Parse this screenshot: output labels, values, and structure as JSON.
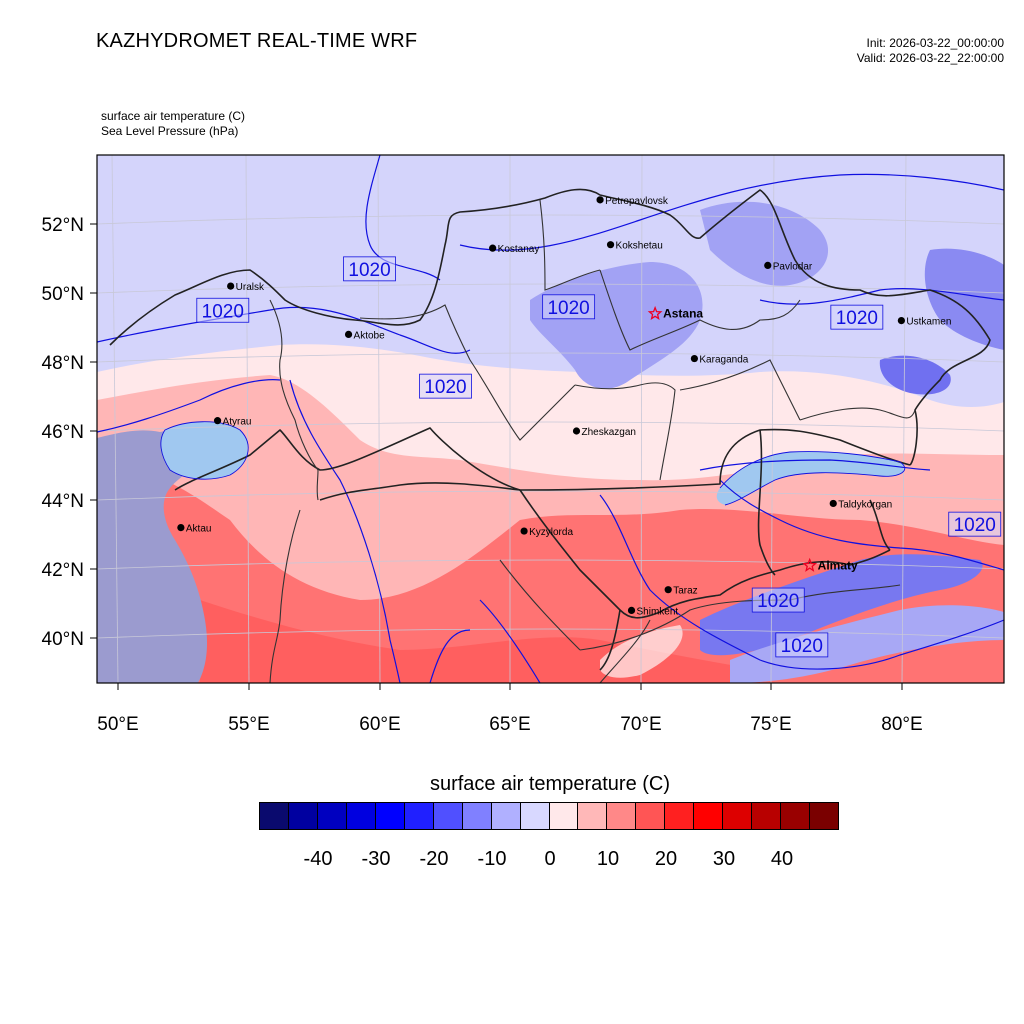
{
  "header": {
    "title": "KAZHYDROMET REAL-TIME WRF",
    "init": "Init: 2026-03-22_00:00:00",
    "valid": "Valid: 2026-03-22_22:00:00"
  },
  "variables": {
    "var1": "surface air temperature   (C)",
    "var2": "Sea Level Pressure   (hPa)"
  },
  "axes": {
    "lat_labels": [
      "52°N",
      "50°N",
      "48°N",
      "46°N",
      "44°N",
      "42°N",
      "40°N"
    ],
    "lon_labels": [
      "50°E",
      "55°E",
      "60°E",
      "65°E",
      "70°E",
      "75°E",
      "80°E"
    ]
  },
  "cities": [
    {
      "name": "Petropavlovsk",
      "lon": 68.4,
      "lat": 52.7,
      "marker": "dot",
      "bold": false
    },
    {
      "name": "Kostanay",
      "lon": 64.3,
      "lat": 51.3,
      "marker": "dot",
      "bold": false
    },
    {
      "name": "Kokshetau",
      "lon": 68.8,
      "lat": 51.4,
      "marker": "dot",
      "bold": false
    },
    {
      "name": "Pavlodar",
      "lon": 74.8,
      "lat": 50.8,
      "marker": "dot",
      "bold": false
    },
    {
      "name": "Uralsk",
      "lon": 54.3,
      "lat": 50.2,
      "marker": "dot",
      "bold": false
    },
    {
      "name": "Astana",
      "lon": 70.5,
      "lat": 49.4,
      "marker": "star",
      "bold": true
    },
    {
      "name": "Aktobe",
      "lon": 58.8,
      "lat": 48.8,
      "marker": "dot",
      "bold": false
    },
    {
      "name": "Ustkamen",
      "lon": 79.9,
      "lat": 49.2,
      "marker": "dot",
      "bold": false
    },
    {
      "name": "Karaganda",
      "lon": 72.0,
      "lat": 48.1,
      "marker": "dot",
      "bold": false
    },
    {
      "name": "Atyrau",
      "lon": 53.8,
      "lat": 46.3,
      "marker": "dot",
      "bold": false
    },
    {
      "name": "Zheskazgan",
      "lon": 67.5,
      "lat": 46.0,
      "marker": "dot",
      "bold": false
    },
    {
      "name": "Taldykorgan",
      "lon": 77.3,
      "lat": 43.9,
      "marker": "dot",
      "bold": false
    },
    {
      "name": "Aktau",
      "lon": 52.4,
      "lat": 43.2,
      "marker": "dot",
      "bold": false
    },
    {
      "name": "Kyzylorda",
      "lon": 65.5,
      "lat": 43.1,
      "marker": "dot",
      "bold": false
    },
    {
      "name": "Almaty",
      "lon": 76.4,
      "lat": 42.1,
      "marker": "star",
      "bold": true
    },
    {
      "name": "Taraz",
      "lon": 71.0,
      "lat": 41.4,
      "marker": "dot",
      "bold": false
    },
    {
      "name": "Shimkent",
      "lon": 69.6,
      "lat": 40.8,
      "marker": "dot",
      "bold": false
    }
  ],
  "pressure_labels": [
    {
      "text": "1020",
      "lon": 59.6,
      "lat": 50.7
    },
    {
      "text": "1020",
      "lon": 54.0,
      "lat": 49.5
    },
    {
      "text": "1020",
      "lon": 67.2,
      "lat": 49.6
    },
    {
      "text": "1020",
      "lon": 62.5,
      "lat": 47.3
    },
    {
      "text": "1020",
      "lon": 78.2,
      "lat": 49.3
    },
    {
      "text": "1020",
      "lon": 82.7,
      "lat": 43.3
    },
    {
      "text": "1020",
      "lon": 75.2,
      "lat": 41.1
    },
    {
      "text": "1020",
      "lon": 76.1,
      "lat": 39.8
    }
  ],
  "colorbar": {
    "title": "surface air temperature  (C)",
    "tick_labels": [
      "-40",
      "-30",
      "-20",
      "-10",
      "0",
      "10",
      "20",
      "30",
      "40"
    ],
    "colors": [
      "#0a0a6e",
      "#0000a0",
      "#0000c0",
      "#0000e0",
      "#0000ff",
      "#2020ff",
      "#5050ff",
      "#8080ff",
      "#b0b0ff",
      "#d8d8ff",
      "#ffe8ea",
      "#ffb8b8",
      "#ff8888",
      "#ff5555",
      "#ff2020",
      "#ff0000",
      "#dd0000",
      "#b80000",
      "#990000",
      "#7a0000"
    ]
  },
  "palette": {
    "cold_light": "#d4d4fb",
    "cold_mid": "#a8a8f5",
    "cold_deep": "#7070f0",
    "warm_light": "#ffe8ea",
    "warm_mid": "#ffb6b6",
    "warm_deep": "#ff7070",
    "caspian": "#9b9bcf",
    "lake": "#a0c8f0",
    "isobar": "#1010e0"
  }
}
